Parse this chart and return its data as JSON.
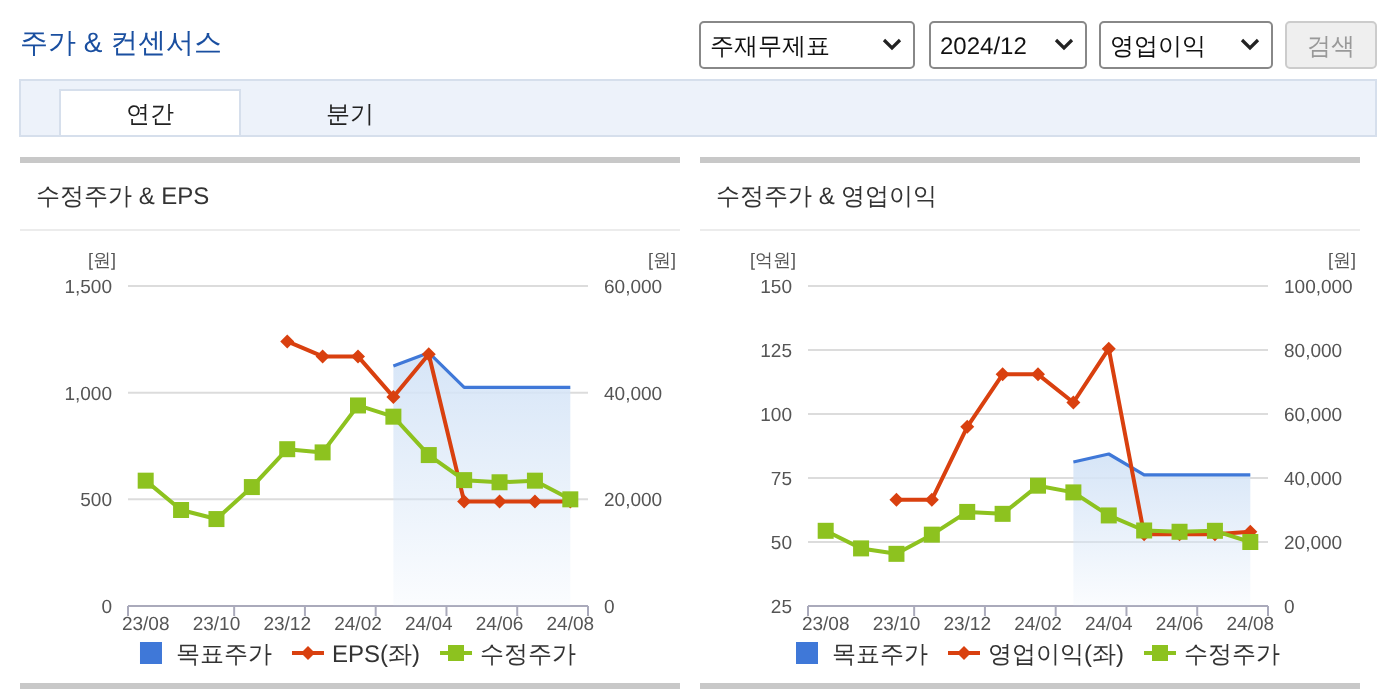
{
  "chart_data": [
    {
      "type": "other",
      "title": "주가 & 컨센서스",
      "annotations": [
        "주재무제표",
        "2024/12",
        "영업이익",
        "검색",
        "연간",
        "분기"
      ]
    },
    {
      "type": "line",
      "title": "수정주가 & EPS",
      "ylabel": "[원]",
      "y2label": "[원]",
      "grid": "y",
      "legend": "bottom",
      "categories": [
        "23/08",
        null,
        "23/10",
        null,
        "23/12",
        null,
        "24/02",
        null,
        "24/04",
        null,
        "24/06",
        null,
        "24/08"
      ],
      "ylim": [
        0,
        1500
      ],
      "yticks": [
        0,
        500,
        {
          "value": 1000,
          "label": "1,000"
        },
        {
          "value": 1500,
          "label": "1,500"
        }
      ],
      "y2lim": [
        0,
        60000
      ],
      "y2ticks": [
        0,
        {
          "value": 20000,
          "label": "20,000"
        },
        {
          "value": 40000,
          "label": "40,000"
        },
        {
          "value": 60000,
          "label": "60,000"
        }
      ],
      "series": [
        {
          "name": "목표주가",
          "type": "area",
          "axis": "y2",
          "color": "#3f78d8",
          "values": [
            null,
            null,
            null,
            null,
            null,
            null,
            null,
            45000,
            47500,
            41000,
            41000,
            41000,
            41000
          ]
        },
        {
          "name": "EPS(좌)",
          "type": "line",
          "color": "#d9400f",
          "marker": "diamond",
          "values": [
            null,
            null,
            null,
            null,
            1240,
            1170,
            1170,
            980,
            1180,
            490,
            490,
            490,
            490
          ]
        },
        {
          "name": "수정주가",
          "type": "line",
          "axis": "y2",
          "color": "#8dc21f",
          "marker": "square",
          "values": [
            23500,
            18000,
            16300,
            22300,
            29400,
            28800,
            37600,
            35500,
            28300,
            23600,
            23200,
            23500,
            20000
          ]
        }
      ]
    },
    {
      "type": "line",
      "title": "수정주가 & 영업이익",
      "ylabel": "[억원]",
      "y2label": "[원]",
      "grid": "y",
      "legend": "bottom",
      "categories": [
        "23/08",
        null,
        "23/10",
        null,
        "23/12",
        null,
        "24/02",
        null,
        "24/04",
        null,
        "24/06",
        null,
        "24/08"
      ],
      "ylim": [
        25,
        150
      ],
      "yticks": [
        25,
        50,
        75,
        100,
        125,
        150
      ],
      "y2lim": [
        0,
        100000
      ],
      "y2ticks": [
        0,
        {
          "value": 20000,
          "label": "20,000"
        },
        {
          "value": 40000,
          "label": "40,000"
        },
        {
          "value": 60000,
          "label": "60,000"
        },
        {
          "value": 80000,
          "label": "80,000"
        },
        {
          "value": 100000,
          "label": "100,000"
        }
      ],
      "series": [
        {
          "name": "목표주가",
          "type": "area",
          "axis": "y2",
          "color": "#3f78d8",
          "values": [
            null,
            null,
            null,
            null,
            null,
            null,
            null,
            45000,
            47500,
            41000,
            41000,
            41000,
            41000
          ]
        },
        {
          "name": "영업이익(좌)",
          "type": "line",
          "color": "#d9400f",
          "marker": "diamond",
          "values": [
            null,
            null,
            66.5,
            66.5,
            95,
            115.5,
            115.5,
            104.5,
            125.5,
            53,
            53,
            53,
            54
          ]
        },
        {
          "name": "수정주가",
          "type": "line",
          "axis": "y2",
          "color": "#8dc21f",
          "marker": "square",
          "values": [
            23500,
            18000,
            16300,
            22300,
            29400,
            28800,
            37600,
            35500,
            28300,
            23600,
            23200,
            23500,
            20000
          ]
        }
      ]
    }
  ]
}
